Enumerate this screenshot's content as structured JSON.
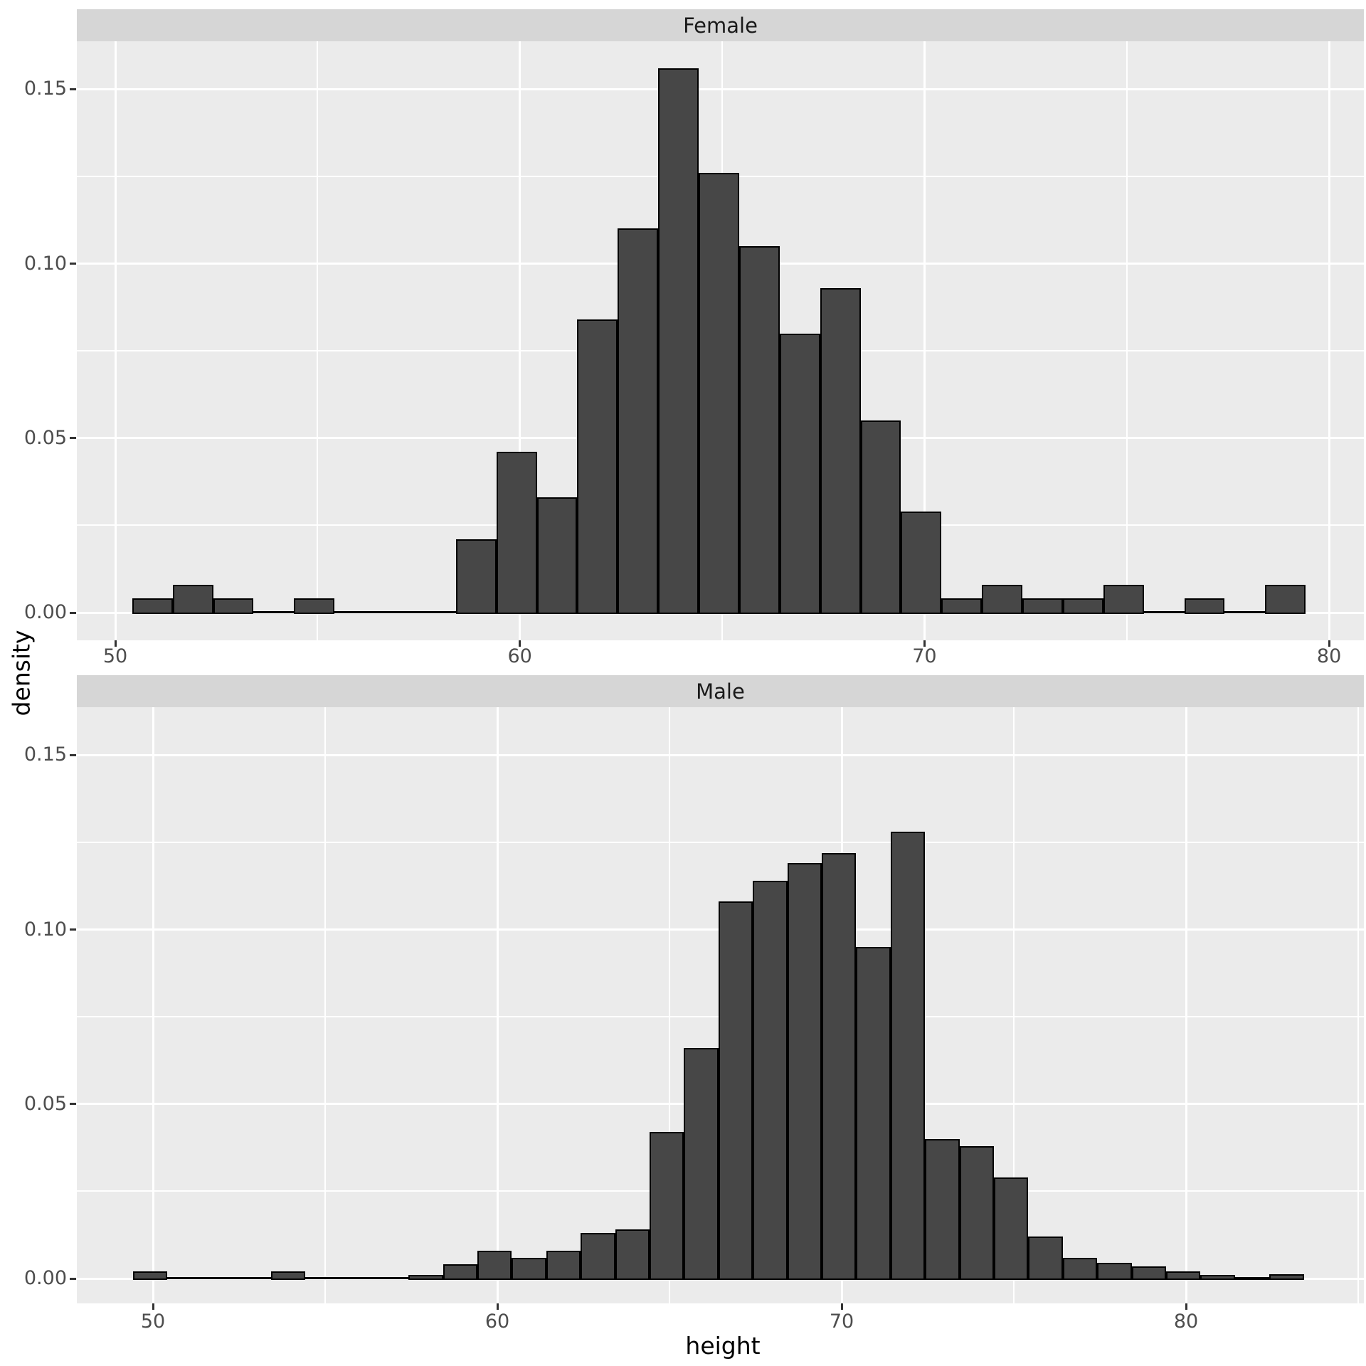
{
  "chart_data": {
    "type": "bar",
    "subtype": "faceted-histogram",
    "title": "",
    "xlabel": "height",
    "ylabel": "density",
    "grid": true,
    "legend": "none",
    "facet_labels": [
      "Female",
      "Male"
    ],
    "ylim": [
      -0.008,
      0.1637
    ],
    "y_ticks": [
      {
        "label": "0.00",
        "value": 0.0
      },
      {
        "label": "0.05",
        "value": 0.05
      },
      {
        "label": "0.10",
        "value": 0.1
      },
      {
        "label": "0.15",
        "value": 0.15
      }
    ],
    "y_minor_ticks": [
      0.025,
      0.075,
      0.125
    ],
    "facets": [
      {
        "label": "Female",
        "x_domain": [
          49.05,
          80.9
        ],
        "x_ticks": [
          {
            "label": "50",
            "value": 50
          },
          {
            "label": "60",
            "value": 60
          },
          {
            "label": "70",
            "value": 70
          },
          {
            "label": "80",
            "value": 80
          }
        ],
        "x_minor_ticks": [
          55,
          65,
          75
        ],
        "bin_start": 50.42,
        "bin_width": 1.0,
        "densities": [
          0.004,
          0.008,
          0.004,
          0,
          0.004,
          0,
          0,
          0,
          0.021,
          0.046,
          0.033,
          0.084,
          0.11,
          0.156,
          0.126,
          0.105,
          0.08,
          0.093,
          0.055,
          0.029,
          0.004,
          0.008,
          0.004,
          0.004,
          0.008,
          0,
          0.004,
          0,
          0.008
        ]
      },
      {
        "label": "Male",
        "x_domain": [
          47.8,
          85.2
        ],
        "x_ticks": [
          {
            "label": "50",
            "value": 50
          },
          {
            "label": "60",
            "value": 60
          },
          {
            "label": "70",
            "value": 70
          },
          {
            "label": "80",
            "value": 80
          }
        ],
        "x_minor_ticks": [
          55,
          65,
          75,
          85
        ],
        "bin_start": 49.42,
        "bin_width": 1.0,
        "densities": [
          0.002,
          0,
          0,
          0,
          0.002,
          0,
          0,
          0,
          0.001,
          0.004,
          0.008,
          0.006,
          0.008,
          0.013,
          0.014,
          0.042,
          0.066,
          0.108,
          0.114,
          0.119,
          0.122,
          0.095,
          0.128,
          0.04,
          0.038,
          0.029,
          0.012,
          0.006,
          0.0045,
          0.0035,
          0.002,
          0.001,
          0.0005,
          0.0012
        ]
      }
    ],
    "colors": {
      "bar_fill": "#474747",
      "bar_outline": "#000000",
      "panel_bg": "#EBEBEB",
      "strip_bg": "#D6D6D6",
      "grid": "#FFFFFF",
      "axis_text": "#4D4D4D",
      "strip_text": "#1A1A1A",
      "title_text": "#000000"
    }
  }
}
